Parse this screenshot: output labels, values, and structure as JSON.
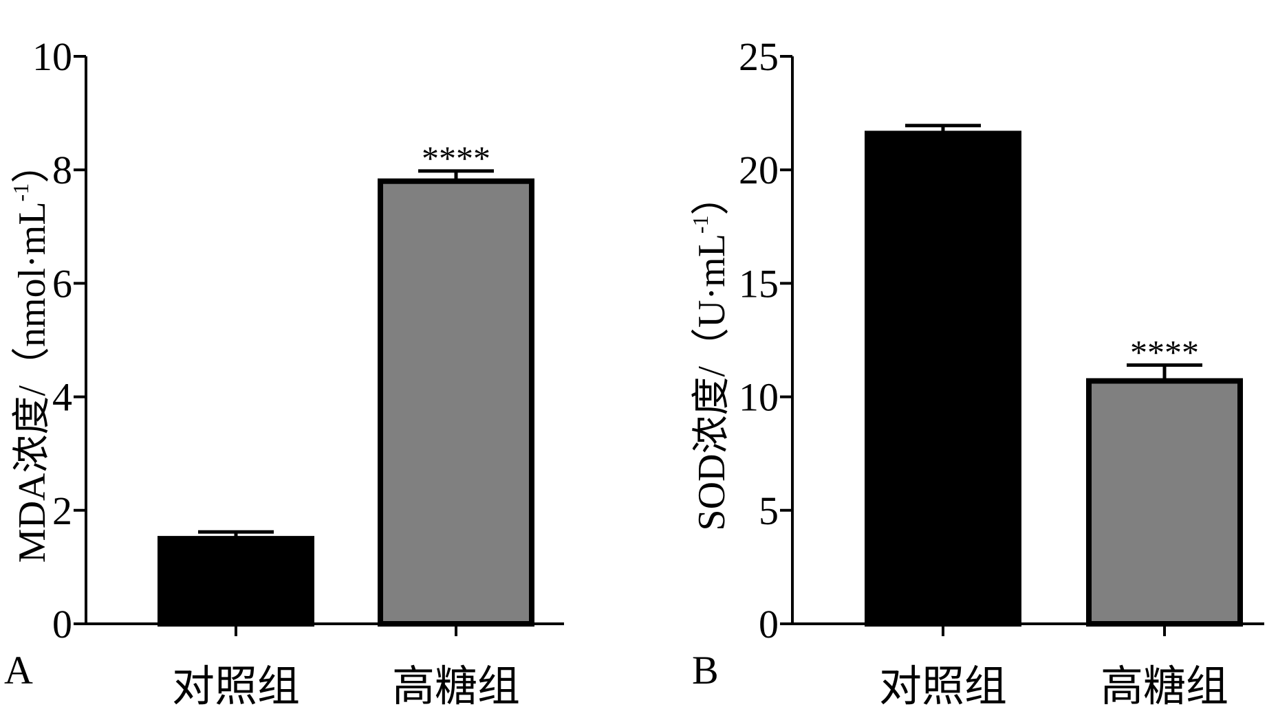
{
  "chart_data": [
    {
      "panel": "A",
      "type": "bar",
      "categories": [
        "对照组",
        "高糖组"
      ],
      "values": [
        1.5,
        7.8
      ],
      "error": [
        0.12,
        0.18
      ],
      "significance": [
        "",
        "****"
      ],
      "bar_colors": [
        "#000000",
        "#808080"
      ],
      "ylabel": "MDA浓度/（nmol·mL",
      "ylabel_sup": "-1",
      "ylabel_close": "）",
      "ylim": [
        0,
        10
      ],
      "yticks": [
        0,
        2,
        4,
        6,
        8,
        10
      ],
      "ytick_labels": [
        "0",
        "2",
        "4",
        "6",
        "8",
        "10"
      ],
      "grid": false
    },
    {
      "panel": "B",
      "type": "bar",
      "categories": [
        "对照组",
        "高糖组"
      ],
      "values": [
        21.6,
        10.7
      ],
      "error": [
        0.35,
        0.7
      ],
      "significance": [
        "",
        "****"
      ],
      "bar_colors": [
        "#000000",
        "#808080"
      ],
      "ylabel": "SOD浓度/（U·mL",
      "ylabel_sup": "-1",
      "ylabel_close": "）",
      "ylim": [
        0,
        25
      ],
      "yticks": [
        0,
        5,
        10,
        15,
        20,
        25
      ],
      "ytick_labels": [
        "0",
        "5",
        "10",
        "15",
        "20",
        "25"
      ],
      "grid": false
    }
  ]
}
